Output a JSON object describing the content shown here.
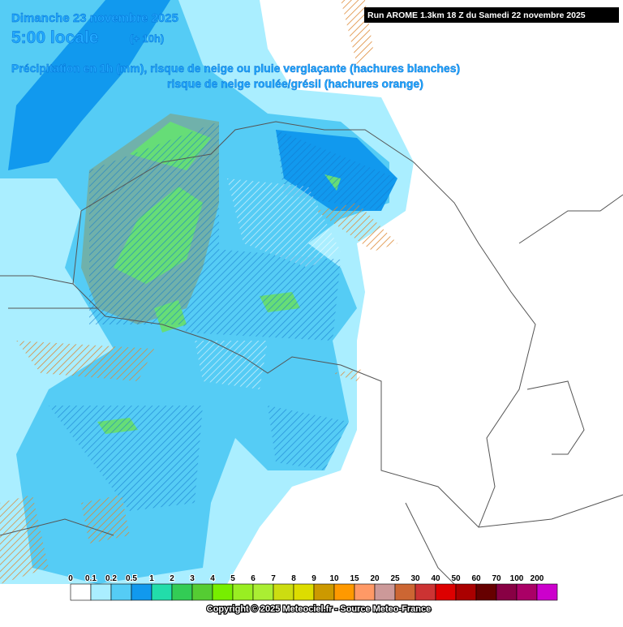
{
  "header": {
    "date": "Dimanche 23 novembre 2025",
    "time": "5:00 locale",
    "offset": "(+ 10h)",
    "line1": "Précipitation en 1h (mm), risque de neige ou pluie verglaçante (hachures blanches)",
    "line2": "risque de neige roulée/grésil (hachures orange)",
    "run": "Run AROME 1.3km 18 Z du Samedi 22 novembre 2025"
  },
  "legend": {
    "labels": [
      0,
      0.1,
      0.2,
      0.5,
      1,
      2,
      3,
      4,
      5,
      6,
      7,
      8,
      9,
      10,
      15,
      20,
      25,
      30,
      40,
      50,
      60,
      70,
      100,
      200
    ],
    "colors": [
      "#ffffff",
      "#aaeeff",
      "#55ccf5",
      "#1199ee",
      "#22ddaa",
      "#33cc55",
      "#55cc33",
      "#77ee00",
      "#99ee22",
      "#aaee33",
      "#ccdd11",
      "#dddd00",
      "#cc9900",
      "#ff9900",
      "#ff9966",
      "#cc9999",
      "#cc6633",
      "#cc3333",
      "#dd0000",
      "#aa0000",
      "#660000",
      "#880044",
      "#aa0066",
      "#cc00cc"
    ]
  },
  "footer": {
    "copyright": "Copyright © 2025 Meteociel.fr - Source Meteo-France"
  }
}
